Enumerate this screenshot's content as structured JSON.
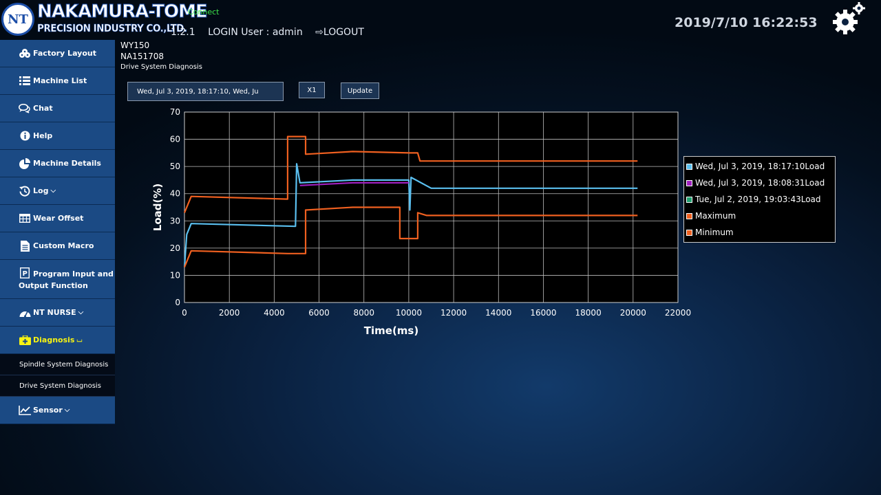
{
  "header": {
    "logo_line1": "NAKAMURA-TOME",
    "logo_line2": "PRECISION INDUSTRY CO.,LTD.",
    "connection_status": "Connect",
    "version": "1.2.1",
    "login_text": "LOGIN User : admin",
    "logout_label": "LOGOUT",
    "datetime": "2019/7/10 16:22:53"
  },
  "sidebar": {
    "items": [
      {
        "label": "Factory Layout",
        "icon": "factory-icon"
      },
      {
        "label": "Machine List",
        "icon": "list-icon"
      },
      {
        "label": "Chat",
        "icon": "chat-icon"
      },
      {
        "label": "Help",
        "icon": "info-icon"
      },
      {
        "label": "Machine Details",
        "icon": "pie-chart-icon"
      },
      {
        "label": "Log",
        "icon": "history-icon"
      },
      {
        "label": "Wear Offset",
        "icon": "table-icon"
      },
      {
        "label": "Custom Macro",
        "icon": "document-icon"
      },
      {
        "label": "Program Input and Output Function",
        "icon": "program-icon"
      },
      {
        "label": "NT NURSE",
        "icon": "dashboard-icon"
      },
      {
        "label": "Diagnosis",
        "icon": "medkit-icon"
      },
      {
        "label": "Sensor",
        "icon": "line-chart-icon"
      }
    ],
    "sub_items": [
      "Spindle System Diagnosis",
      "Drive System Diagnosis"
    ],
    "active_color": "#f7f312"
  },
  "machine": {
    "model": "WY150",
    "serial": "NA151708",
    "page": "Drive System Diagnosis"
  },
  "controls": {
    "date_range": "Wed, Jul 3, 2019, 18:17:10, Wed, Ju",
    "scale_label": "X1",
    "update_label": "Update"
  },
  "chart_data": {
    "type": "line",
    "xlabel": "Time(ms)",
    "ylabel": "Load(%)",
    "xlim": [
      0,
      22000
    ],
    "ylim": [
      0,
      70
    ],
    "x_ticks": [
      "0",
      "2000",
      "4000",
      "6000",
      "8000",
      "10000",
      "12000",
      "14000",
      "16000",
      "18000",
      "20000",
      "22000"
    ],
    "y_ticks": [
      "0",
      "10",
      "20",
      "30",
      "40",
      "50",
      "60",
      "70"
    ],
    "grid": true,
    "legend_position": "right",
    "series": [
      {
        "name": "Wed, Jul 3, 2019, 18:17:10Load",
        "color": "#5bc0f0",
        "points": [
          [
            0,
            13
          ],
          [
            100,
            25
          ],
          [
            300,
            29
          ],
          [
            4950,
            28
          ],
          [
            5000,
            51
          ],
          [
            5150,
            44
          ],
          [
            7500,
            45
          ],
          [
            10000,
            45
          ],
          [
            10050,
            34
          ],
          [
            10100,
            46
          ],
          [
            11000,
            42
          ],
          [
            20200,
            42
          ]
        ]
      },
      {
        "name": "Wed, Jul 3, 2019, 18:08:31Load",
        "color": "#a020c0",
        "points": [
          [
            5150,
            43
          ],
          [
            7500,
            44
          ],
          [
            10000,
            44
          ]
        ]
      },
      {
        "name": "Tue, Jul 2, 2019, 19:03:43Load",
        "color": "#20a070",
        "points": []
      },
      {
        "name": "Maximum",
        "color": "#f06020",
        "points": [
          [
            0,
            33
          ],
          [
            300,
            39
          ],
          [
            4600,
            38
          ],
          [
            4600,
            61
          ],
          [
            5400,
            61
          ],
          [
            5400,
            54.5
          ],
          [
            7500,
            55.5
          ],
          [
            10000,
            55
          ],
          [
            10400,
            55
          ],
          [
            10500,
            52
          ],
          [
            20200,
            52
          ]
        ]
      },
      {
        "name": "Minimum",
        "color": "#f06020",
        "points": [
          [
            0,
            13
          ],
          [
            300,
            19
          ],
          [
            4600,
            18
          ],
          [
            5400,
            18
          ],
          [
            5400,
            34
          ],
          [
            7500,
            35
          ],
          [
            9600,
            35
          ],
          [
            9600,
            23.5
          ],
          [
            10400,
            23.5
          ],
          [
            10400,
            33
          ],
          [
            10800,
            32
          ],
          [
            20200,
            32
          ]
        ]
      }
    ]
  }
}
